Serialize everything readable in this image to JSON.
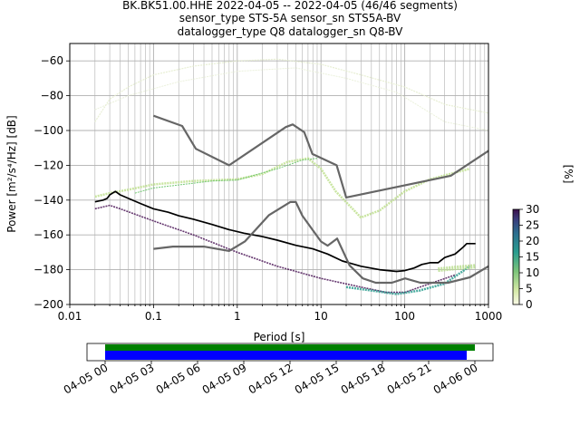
{
  "title": {
    "line1": "BK.BK51.00.HHE   2022-04-05 -- 2022-04-05  (46/46 segments)",
    "line2": "sensor_type STS-5A sensor_sn STS5A-BV",
    "line3": "datalogger_type Q8 datalogger_sn Q8-BV"
  },
  "colorbar": {
    "label": "[%]",
    "ticks": [
      "0",
      "5",
      "10",
      "15",
      "20",
      "25",
      "30"
    ]
  },
  "timeline": {
    "ticks": [
      "04-05 00",
      "04-05 03",
      "04-05 06",
      "04-05 09",
      "04-05 12",
      "04-05 15",
      "04-05 18",
      "04-05 21",
      "04-06 00"
    ],
    "green": "#008000",
    "blue": "#0000ff"
  },
  "chart_data": {
    "type": "line",
    "xlabel": "Period [s]",
    "ylabel": "Power [m²/s⁴/Hz] [dB]",
    "xscale": "log",
    "xlim": [
      0.01,
      1000
    ],
    "ylim": [
      -200,
      -50
    ],
    "xticks": [
      {
        "v": 0.01,
        "t": "0.01"
      },
      {
        "v": 0.1,
        "t": "0.1"
      },
      {
        "v": 1,
        "t": "1"
      },
      {
        "v": 10,
        "t": "10"
      },
      {
        "v": 100,
        "t": "100"
      },
      {
        "v": 1000,
        "t": "1000"
      }
    ],
    "yticks": [
      -200,
      -180,
      -160,
      -140,
      -120,
      -100,
      -80,
      -60
    ],
    "grid": true,
    "colors": {
      "mean": "#000000",
      "noise_model": "#666666"
    },
    "series": [
      {
        "role": "mean",
        "points": [
          [
            0.02,
            -141
          ],
          [
            0.025,
            -140
          ],
          [
            0.028,
            -139
          ],
          [
            0.03,
            -137
          ],
          [
            0.035,
            -135
          ],
          [
            0.04,
            -137
          ],
          [
            0.05,
            -139
          ],
          [
            0.07,
            -142
          ],
          [
            0.1,
            -145
          ],
          [
            0.15,
            -147
          ],
          [
            0.2,
            -149
          ],
          [
            0.3,
            -151
          ],
          [
            0.5,
            -154
          ],
          [
            0.8,
            -157
          ],
          [
            1.2,
            -159
          ],
          [
            2,
            -161
          ],
          [
            3,
            -163
          ],
          [
            5,
            -166
          ],
          [
            8,
            -168
          ],
          [
            12,
            -171
          ],
          [
            18,
            -175
          ],
          [
            30,
            -178
          ],
          [
            50,
            -180
          ],
          [
            80,
            -181
          ],
          [
            100,
            -180.5
          ],
          [
            130,
            -179
          ],
          [
            160,
            -177
          ],
          [
            200,
            -176
          ],
          [
            250,
            -176
          ],
          [
            300,
            -173
          ],
          [
            400,
            -171
          ],
          [
            500,
            -167
          ],
          [
            550,
            -165
          ],
          [
            700,
            -165
          ]
        ]
      },
      {
        "role": "nhnm",
        "points": [
          [
            0.1,
            -91.5
          ],
          [
            0.22,
            -97.4
          ],
          [
            0.32,
            -110.5
          ],
          [
            0.8,
            -120
          ],
          [
            3.8,
            -98
          ],
          [
            4.6,
            -96.5
          ],
          [
            6.3,
            -101
          ],
          [
            7.9,
            -113.5
          ],
          [
            15.4,
            -120
          ],
          [
            20,
            -138.5
          ],
          [
            354.8,
            -126
          ],
          [
            10000,
            -80
          ]
        ]
      },
      {
        "role": "nlnm",
        "points": [
          [
            0.1,
            -168
          ],
          [
            0.17,
            -166.7
          ],
          [
            0.4,
            -166.7
          ],
          [
            0.8,
            -169.2
          ],
          [
            1.24,
            -163.7
          ],
          [
            2.4,
            -148.6
          ],
          [
            4.3,
            -141.1
          ],
          [
            5,
            -141.1
          ],
          [
            6,
            -149
          ],
          [
            10,
            -163.8
          ],
          [
            12,
            -166.2
          ],
          [
            15.6,
            -162.1
          ],
          [
            21.9,
            -177.5
          ],
          [
            31.6,
            -185
          ],
          [
            45,
            -187.5
          ],
          [
            70,
            -187.5
          ],
          [
            101,
            -185
          ],
          [
            154,
            -187.5
          ],
          [
            328,
            -187.5
          ],
          [
            600,
            -184.4
          ],
          [
            1000,
            -178
          ]
        ]
      }
    ],
    "colorscale": {
      "min": 0,
      "max": 30,
      "unit": "%"
    }
  }
}
